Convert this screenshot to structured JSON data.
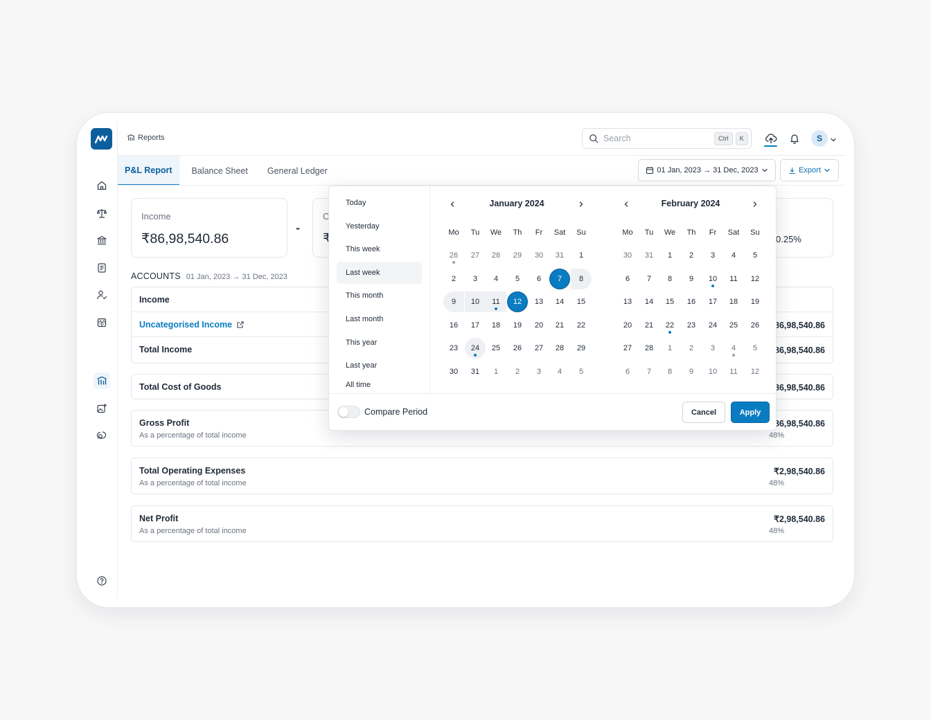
{
  "header": {
    "breadcrumb": "Reports",
    "search_placeholder": "Search",
    "kbd1": "Ctrl",
    "kbd2": "K",
    "avatar_initial": "S"
  },
  "tabs": [
    {
      "label": "P&L Report",
      "active": true
    },
    {
      "label": "Balance Sheet",
      "active": false
    },
    {
      "label": "General Ledger",
      "active": false
    }
  ],
  "date_range_label": "01 Jan, 2023 → 31 Dec, 2023",
  "export_label": "Export",
  "kpis": {
    "income_label": "Income",
    "income_value": "₹86,98,540.86",
    "operator": "-",
    "second_label_partial": "C",
    "second_value_partial": "₹",
    "third_value_partial": "0.25%"
  },
  "accounts": {
    "title": "ACCOUNTS",
    "range": "01 Jan, 2023 → 31 Dec, 2023"
  },
  "income_table": {
    "header": "Income",
    "rows": [
      {
        "label": "Uncategorised Income",
        "value": "₹86,98,540.86"
      },
      {
        "label": "Total Income",
        "value": "₹86,98,540.86"
      }
    ]
  },
  "cost_of_goods": {
    "label": "Total Cost of Goods",
    "value": "₹86,98,540.86"
  },
  "gross_profit": {
    "label": "Gross Profit",
    "sub": "As a percentage of total income",
    "value": "₹86,98,540.86",
    "pct": "48%"
  },
  "operating_expenses": {
    "label": "Total Operating Expenses",
    "sub": "As a percentage of total income",
    "value": "₹2,98,540.86",
    "pct": "48%"
  },
  "net_profit": {
    "label": "Net Profit",
    "sub": "As a percentage of total income",
    "value": "₹2,98,540.86",
    "pct": "48%"
  },
  "picker": {
    "presets": [
      "Today",
      "Yesterday",
      "This week",
      "Last week",
      "This month",
      "Last month",
      "This year",
      "Last year",
      "All time"
    ],
    "selected_preset": "Last week",
    "weekdays": [
      "Mo",
      "Tu",
      "We",
      "Th",
      "Fr",
      "Sat",
      "Su"
    ],
    "months": [
      {
        "title": "January 2024",
        "days": [
          "26",
          "27",
          "28",
          "29",
          "30",
          "31",
          "1",
          "2",
          "3",
          "4",
          "5",
          "6",
          "7",
          "8",
          "9",
          "10",
          "11",
          "12",
          "13",
          "14",
          "15",
          "16",
          "17",
          "18",
          "19",
          "20",
          "21",
          "22",
          "23",
          "24",
          "25",
          "26",
          "27",
          "28",
          "29",
          "30",
          "31",
          "1",
          "2",
          "3",
          "4",
          "5"
        ],
        "muted": [
          0,
          1,
          2,
          3,
          4,
          5,
          37,
          38,
          39,
          40,
          41
        ],
        "selected": [
          12,
          17
        ],
        "range": [
          12,
          13,
          14,
          15,
          16,
          17
        ],
        "today": 29,
        "blue_dots": [
          16,
          29
        ],
        "grey_dots": [
          0
        ]
      },
      {
        "title": "February 2024",
        "days": [
          "30",
          "31",
          "1",
          "2",
          "3",
          "4",
          "5",
          "6",
          "7",
          "8",
          "9",
          "10",
          "11",
          "12",
          "13",
          "14",
          "15",
          "16",
          "17",
          "18",
          "19",
          "20",
          "21",
          "22",
          "23",
          "24",
          "25",
          "26",
          "27",
          "28",
          "1",
          "2",
          "3",
          "4",
          "5",
          "6",
          "7",
          "8",
          "9",
          "10",
          "11",
          "12"
        ],
        "muted": [
          0,
          1,
          30,
          31,
          32,
          33,
          34,
          35,
          36,
          37,
          38,
          39,
          40,
          41
        ],
        "selected": [],
        "range": [],
        "today": -1,
        "blue_dots": [
          11,
          23
        ],
        "grey_dots": [
          33
        ]
      }
    ],
    "compare_label": "Compare Period",
    "compare_on": false,
    "cancel_label": "Cancel",
    "apply_label": "Apply"
  },
  "colors": {
    "brand": "#0c5f9c",
    "accent": "#0a7cc1"
  }
}
